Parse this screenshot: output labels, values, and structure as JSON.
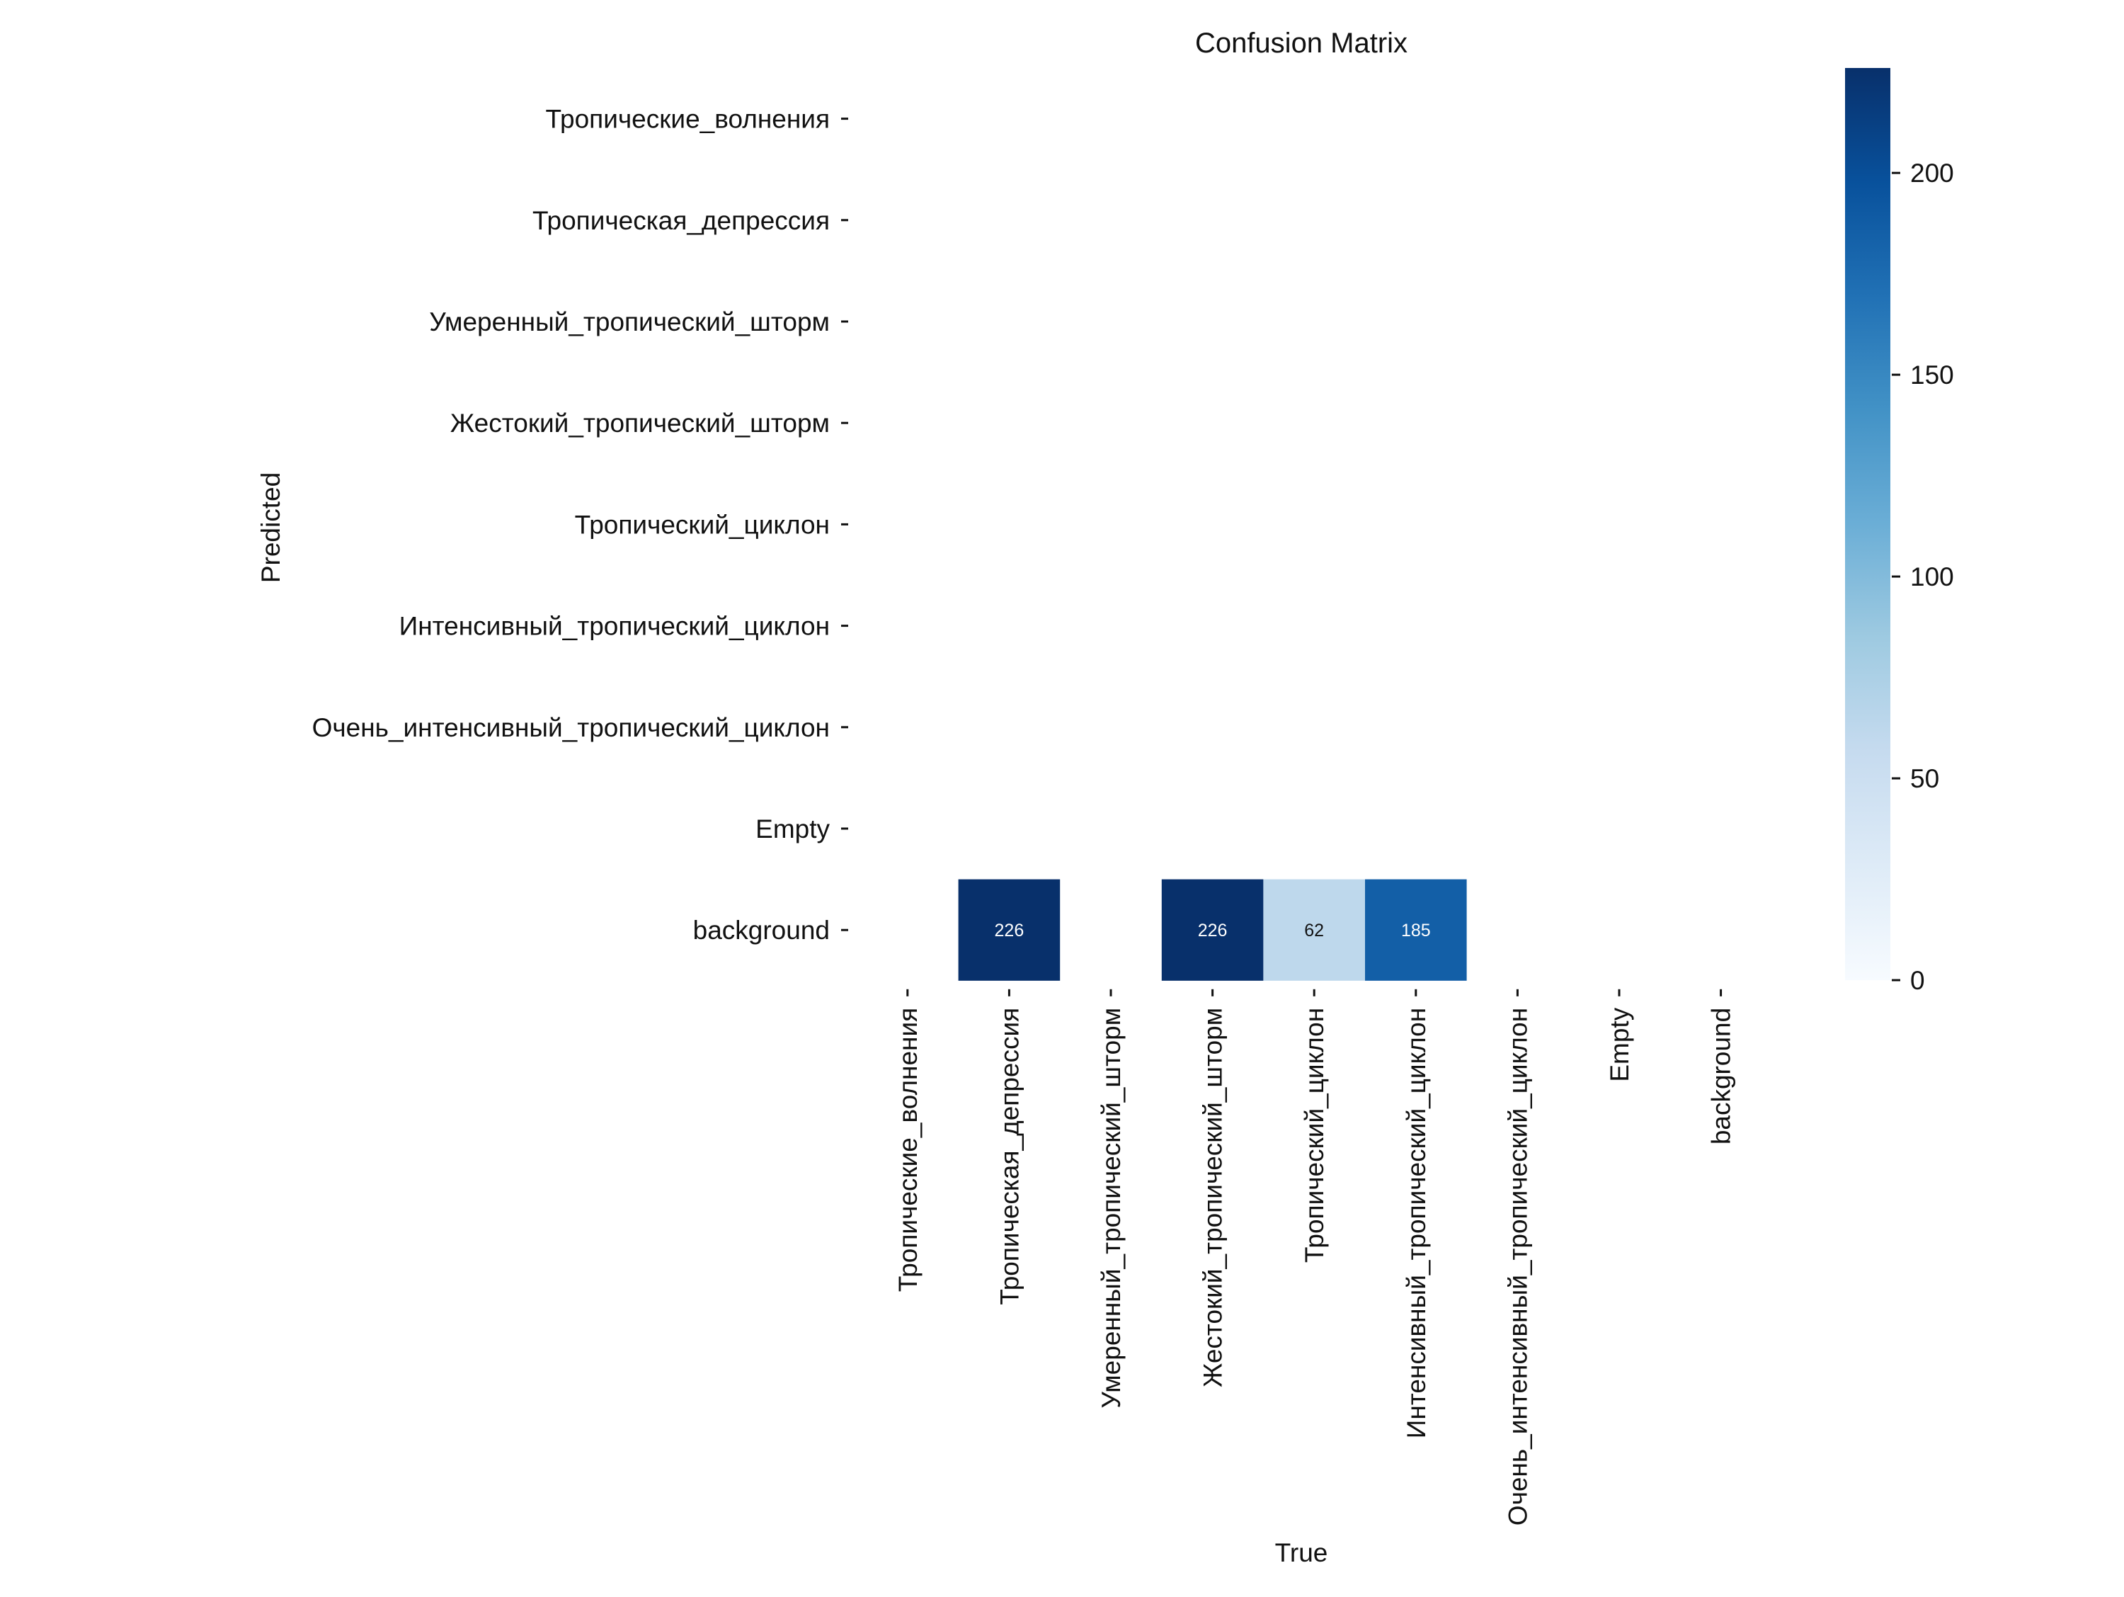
{
  "chart_data": {
    "type": "heatmap",
    "title": "Confusion Matrix",
    "xlabel": "True",
    "ylabel": "Predicted",
    "x_categories": [
      "Тропические_волнения",
      "Тропическая_депрессия",
      "Умеренный_тропический_шторм",
      "Жестокий_тропический_шторм",
      "Тропический_циклон",
      "Интенсивный_тропический_циклон",
      "Очень_интенсивный_тропический_циклон",
      "Empty",
      "background"
    ],
    "y_categories": [
      "Тропические_волнения",
      "Тропическая_депрессия",
      "Умеренный_тропический_шторм",
      "Жестокий_тропический_шторм",
      "Тропический_циклон",
      "Интенсивный_тропический_циклон",
      "Очень_интенсивный_тропический_циклон",
      "Empty",
      "background"
    ],
    "values": [
      [
        null,
        null,
        null,
        null,
        null,
        null,
        null,
        null,
        null
      ],
      [
        null,
        null,
        null,
        null,
        null,
        null,
        null,
        null,
        null
      ],
      [
        null,
        null,
        null,
        null,
        null,
        null,
        null,
        null,
        null
      ],
      [
        null,
        null,
        null,
        null,
        null,
        null,
        null,
        null,
        null
      ],
      [
        null,
        null,
        null,
        null,
        null,
        null,
        null,
        null,
        null
      ],
      [
        null,
        null,
        null,
        null,
        null,
        null,
        null,
        null,
        null
      ],
      [
        null,
        null,
        null,
        null,
        null,
        null,
        null,
        null,
        null
      ],
      [
        null,
        null,
        null,
        null,
        null,
        null,
        null,
        null,
        null
      ],
      [
        null,
        226,
        null,
        226,
        62,
        185,
        null,
        null,
        null
      ]
    ],
    "colorbar": {
      "min": 0,
      "max": 226,
      "ticks": [
        0,
        50,
        100,
        150,
        200
      ],
      "colormap": "Blues",
      "colors": [
        "#f7fbff",
        "#deebf7",
        "#c6dbef",
        "#9ecae1",
        "#6baed6",
        "#4292c6",
        "#2171b5",
        "#08519c",
        "#08306b"
      ]
    },
    "empty_cells": "blank",
    "grid": false
  }
}
